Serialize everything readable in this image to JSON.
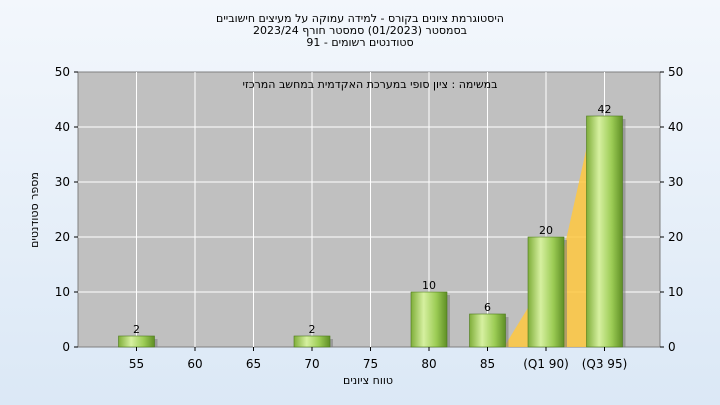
{
  "chart_data": {
    "type": "bar",
    "title": [
      "היסטוגרמת ציונים בקורס - למידה עמוקה על מעיצים חישוביים",
      "בסמסטר  (01/2023)  סמסטר חורף  2023/24",
      "סטודנטים רשומים - 91"
    ],
    "annotation": "במשימה : ציון סופי במערכת האקדמית במחשב המרכזי",
    "xlabel": "טווח ציונים",
    "ylabel": "מספר סטודנטים",
    "categories": [
      "55",
      "60",
      "65",
      "70",
      "75",
      "80",
      "85",
      "(Q1 90)",
      "(Q3 95)"
    ],
    "values": [
      2,
      0,
      0,
      2,
      0,
      10,
      6,
      20,
      42
    ],
    "data_labels": [
      "2",
      "",
      "",
      "2",
      "",
      "10",
      "6",
      "20",
      "42"
    ],
    "ylim": [
      0,
      50
    ],
    "yticks": [
      0,
      10,
      20,
      30,
      40,
      50
    ],
    "grid": true,
    "colors": {
      "plot_bg": "#c0c0c0",
      "grid": "#ffffff",
      "bar_light": "#d6f0a0",
      "bar_mid": "#9ccc55",
      "bar_dark": "#5f8f25",
      "highlight": "#ffc840"
    }
  }
}
